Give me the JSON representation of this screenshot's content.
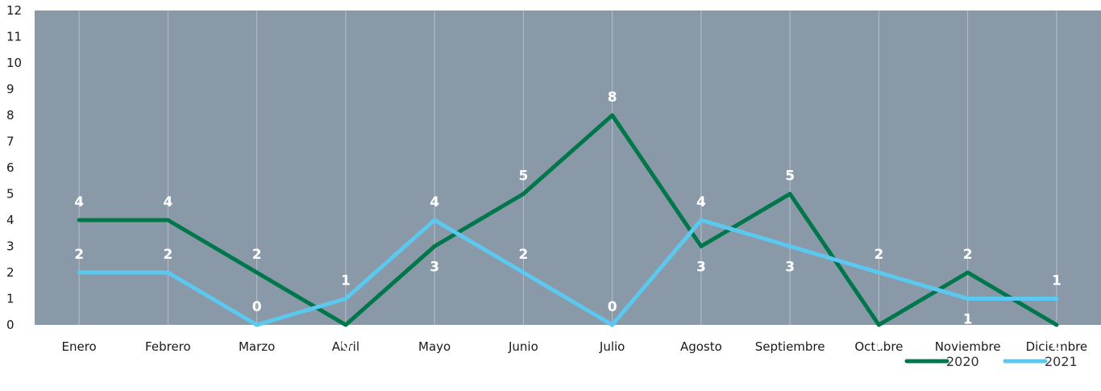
{
  "chart_data": {
    "type": "line",
    "categories": [
      "Enero",
      "Febrero",
      "Marzo",
      "Abril",
      "Mayo",
      "Junio",
      "Julio",
      "Agosto",
      "Septiembre",
      "Octubre",
      "Noviembre",
      "Diciembre"
    ],
    "series": [
      {
        "name": "2020",
        "color": "#00774a",
        "values": [
          4,
          4,
          2,
          0,
          3,
          5,
          8,
          3,
          5,
          0,
          2,
          0
        ],
        "label_positions": [
          "above",
          "above",
          "above",
          "below",
          "below",
          "above",
          "above",
          "below",
          "above",
          "below",
          "above",
          "below"
        ]
      },
      {
        "name": "2021",
        "color": "#5bc8f0",
        "values": [
          2,
          2,
          0,
          1,
          4,
          2,
          0,
          4,
          3,
          2,
          1,
          1
        ],
        "label_positions": [
          "above",
          "above",
          "above",
          "above",
          "above",
          "above",
          "above",
          "above",
          "below",
          "above",
          "below",
          "above"
        ]
      }
    ],
    "ylim": [
      0,
      12
    ],
    "yticks": [
      0,
      1,
      2,
      3,
      4,
      5,
      6,
      7,
      8,
      9,
      10,
      11,
      12
    ],
    "plot_background": "#8a99a8",
    "gridlines": "vertical",
    "legend_position": "bottom-right",
    "title": "",
    "xlabel": "",
    "ylabel": ""
  }
}
